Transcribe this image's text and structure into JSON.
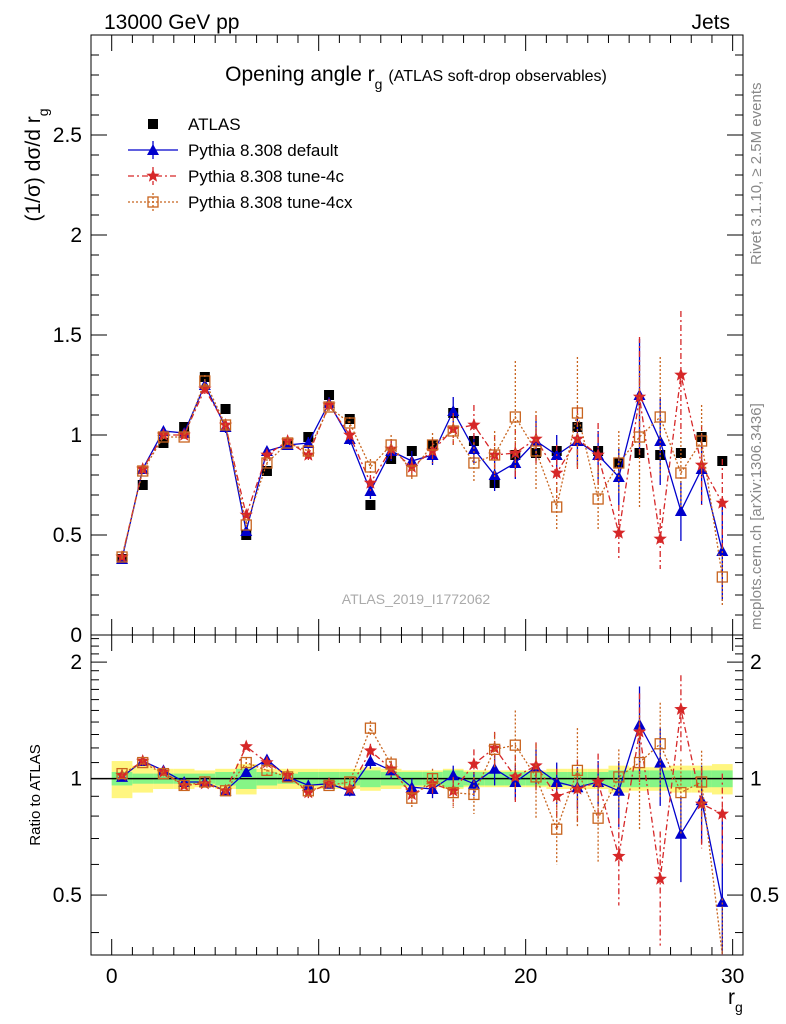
{
  "header": {
    "energy": "13000 GeV pp",
    "category": "Jets",
    "side_rivet": "Rivet 3.1.10, ≥ 2.5M events",
    "side_mcplots": "mcplots.cern.ch [arXiv:1306.3436]",
    "analysis_id": "ATLAS_2019_I1772062"
  },
  "chart_data": {
    "type": "scatter",
    "title": "Opening angle r",
    "title_sub": "g",
    "title_suffix": "(ATLAS soft-drop observables)",
    "ylabel": "(1/σ) dσ/d r",
    "ylabel_sub": "g",
    "ratio_ylabel": "Ratio to ATLAS",
    "xlabel": "r",
    "xlabel_sub": "g",
    "xlim": [
      -1,
      30.5
    ],
    "ylim": [
      0,
      3.0
    ],
    "ratio_ylim": [
      0.35,
      2.35
    ],
    "x_ticks": [
      "0",
      "10",
      "20",
      "30"
    ],
    "y_ticks": [
      "0",
      "0.5",
      "1",
      "1.5",
      "2",
      "2.5"
    ],
    "ratio_y_ticks_left": [
      "0.5",
      "1",
      "2"
    ],
    "ratio_y_ticks_right": [
      "0.5",
      "1",
      "2"
    ],
    "x": [
      0.5,
      1.5,
      2.5,
      3.5,
      4.5,
      5.5,
      6.5,
      7.5,
      8.5,
      9.5,
      10.5,
      11.5,
      12.5,
      13.5,
      14.5,
      15.5,
      16.5,
      17.5,
      18.5,
      19.5,
      20.5,
      21.5,
      22.5,
      23.5,
      24.5,
      25.5,
      26.5,
      27.5,
      28.5,
      29.5
    ],
    "legend": [
      "ATLAS",
      "Pythia 8.308 default",
      "Pythia 8.308 tune-4c",
      "Pythia 8.308 tune-4cx"
    ],
    "series": [
      {
        "name": "ATLAS",
        "color": "#000000",
        "marker": "square-filled",
        "values": [
          0.38,
          0.75,
          0.96,
          1.04,
          1.29,
          1.13,
          0.5,
          0.82,
          0.95,
          0.99,
          1.2,
          1.08,
          0.65,
          0.88,
          0.92,
          0.95,
          1.11,
          0.97,
          0.76,
          0.9,
          0.91,
          0.92,
          1.04,
          0.92,
          0.86,
          0.91,
          0.9,
          0.91,
          0.99,
          0.87
        ]
      },
      {
        "name": "Pythia 8.308 default",
        "color": "#0000cc",
        "marker": "triangle-filled",
        "values": [
          0.38,
          0.83,
          1.02,
          1.01,
          1.25,
          1.04,
          0.52,
          0.92,
          0.95,
          0.96,
          1.16,
          0.98,
          0.72,
          0.92,
          0.87,
          0.9,
          1.12,
          0.93,
          0.8,
          0.86,
          0.97,
          0.9,
          0.97,
          0.9,
          0.79,
          1.2,
          0.97,
          0.62,
          0.83,
          0.42
        ],
        "err": [
          0.02,
          0.02,
          0.02,
          0.02,
          0.03,
          0.03,
          0.02,
          0.02,
          0.02,
          0.03,
          0.03,
          0.03,
          0.04,
          0.05,
          0.05,
          0.05,
          0.07,
          0.07,
          0.08,
          0.08,
          0.1,
          0.1,
          0.12,
          0.12,
          0.14,
          0.28,
          0.22,
          0.15,
          0.18,
          0.25
        ]
      },
      {
        "name": "Pythia 8.308 tune-4c",
        "color": "#d62728",
        "marker": "star",
        "values": [
          0.39,
          0.83,
          1.0,
          1.0,
          1.23,
          1.05,
          0.6,
          0.9,
          0.97,
          0.9,
          1.15,
          1.0,
          0.76,
          0.93,
          0.84,
          0.92,
          1.03,
          1.05,
          0.9,
          0.91,
          0.98,
          0.81,
          0.98,
          0.9,
          0.51,
          1.19,
          0.48,
          1.3,
          0.85,
          0.66
        ],
        "err": [
          0.02,
          0.02,
          0.02,
          0.02,
          0.03,
          0.03,
          0.02,
          0.02,
          0.02,
          0.03,
          0.03,
          0.03,
          0.04,
          0.05,
          0.05,
          0.06,
          0.08,
          0.1,
          0.1,
          0.12,
          0.12,
          0.14,
          0.16,
          0.16,
          0.14,
          0.3,
          0.15,
          0.32,
          0.2,
          0.22
        ]
      },
      {
        "name": "Pythia 8.308 tune-4cx",
        "color": "#c8641e",
        "marker": "square-open",
        "values": [
          0.39,
          0.82,
          0.99,
          0.99,
          1.27,
          1.05,
          0.55,
          0.86,
          0.96,
          0.92,
          1.14,
          1.06,
          0.84,
          0.95,
          0.82,
          0.95,
          1.02,
          0.86,
          0.9,
          1.09,
          0.92,
          0.64,
          1.11,
          0.68,
          0.86,
          0.99,
          1.09,
          0.81,
          0.97,
          0.29
        ],
        "err": [
          0.02,
          0.02,
          0.02,
          0.02,
          0.03,
          0.03,
          0.02,
          0.02,
          0.02,
          0.03,
          0.03,
          0.03,
          0.04,
          0.05,
          0.05,
          0.06,
          0.08,
          0.1,
          0.12,
          0.28,
          0.2,
          0.12,
          0.28,
          0.16,
          0.16,
          0.36,
          0.3,
          0.18,
          0.18,
          0.15
        ]
      }
    ],
    "ratio_series": [
      {
        "name": "Pythia 8.308 default",
        "color": "#0000cc",
        "values": [
          1.01,
          1.11,
          1.05,
          0.98,
          0.98,
          0.93,
          1.04,
          1.12,
          1.01,
          0.96,
          0.97,
          0.93,
          1.11,
          1.05,
          0.95,
          0.94,
          1.02,
          0.97,
          1.06,
          0.98,
          1.07,
          0.98,
          0.95,
          0.98,
          0.93,
          1.38,
          1.1,
          0.72,
          0.88,
          0.48
        ],
        "err": [
          0.02,
          0.02,
          0.02,
          0.02,
          0.02,
          0.02,
          0.03,
          0.03,
          0.02,
          0.03,
          0.02,
          0.03,
          0.05,
          0.05,
          0.05,
          0.05,
          0.06,
          0.07,
          0.1,
          0.1,
          0.12,
          0.12,
          0.12,
          0.13,
          0.18,
          0.35,
          0.25,
          0.18,
          0.2,
          0.3
        ]
      },
      {
        "name": "Pythia 8.308 tune-4c",
        "color": "#d62728",
        "values": [
          1.02,
          1.11,
          1.04,
          0.96,
          0.97,
          0.93,
          1.21,
          1.1,
          1.02,
          0.92,
          0.97,
          0.94,
          1.18,
          1.06,
          0.91,
          0.97,
          0.93,
          1.09,
          1.2,
          1.01,
          1.08,
          0.9,
          0.94,
          0.98,
          0.63,
          1.32,
          0.55,
          1.51,
          0.86,
          0.81
        ],
        "err": [
          0.02,
          0.02,
          0.02,
          0.02,
          0.02,
          0.02,
          0.03,
          0.03,
          0.02,
          0.03,
          0.02,
          0.03,
          0.05,
          0.05,
          0.05,
          0.06,
          0.08,
          0.1,
          0.12,
          0.14,
          0.16,
          0.16,
          0.18,
          0.18,
          0.16,
          0.34,
          0.18,
          0.34,
          0.2,
          0.22
        ]
      },
      {
        "name": "Pythia 8.308 tune-4cx",
        "color": "#c8641e",
        "values": [
          1.03,
          1.1,
          1.03,
          0.96,
          0.98,
          0.93,
          1.1,
          1.05,
          1.01,
          0.93,
          0.96,
          0.98,
          1.35,
          1.09,
          0.89,
          1.0,
          0.92,
          0.91,
          1.19,
          1.22,
          1.01,
          0.74,
          1.05,
          0.79,
          1.01,
          1.1,
          1.23,
          0.92,
          0.98,
          0.33
        ],
        "err": [
          0.02,
          0.02,
          0.02,
          0.02,
          0.02,
          0.02,
          0.03,
          0.03,
          0.02,
          0.03,
          0.02,
          0.03,
          0.06,
          0.05,
          0.05,
          0.06,
          0.08,
          0.1,
          0.12,
          0.28,
          0.22,
          0.14,
          0.3,
          0.18,
          0.18,
          0.36,
          0.34,
          0.2,
          0.2,
          0.16
        ]
      }
    ],
    "band_inner": [
      0.04,
      0.03,
      0.03,
      0.03,
      0.03,
      0.04,
      0.06,
      0.04,
      0.03,
      0.04,
      0.04,
      0.04,
      0.05,
      0.04,
      0.04,
      0.04,
      0.05,
      0.04,
      0.04,
      0.04,
      0.04,
      0.04,
      0.04,
      0.04,
      0.05,
      0.05,
      0.05,
      0.05,
      0.05,
      0.05
    ],
    "band_outer": [
      0.11,
      0.08,
      0.06,
      0.06,
      0.05,
      0.06,
      0.09,
      0.06,
      0.06,
      0.06,
      0.06,
      0.06,
      0.07,
      0.06,
      0.05,
      0.05,
      0.06,
      0.05,
      0.05,
      0.05,
      0.05,
      0.06,
      0.06,
      0.06,
      0.08,
      0.07,
      0.07,
      0.08,
      0.08,
      0.09
    ],
    "band_colors": {
      "inner": "#86f586",
      "outer": "#fff680"
    },
    "grid": false,
    "legend_position": "top-left"
  }
}
